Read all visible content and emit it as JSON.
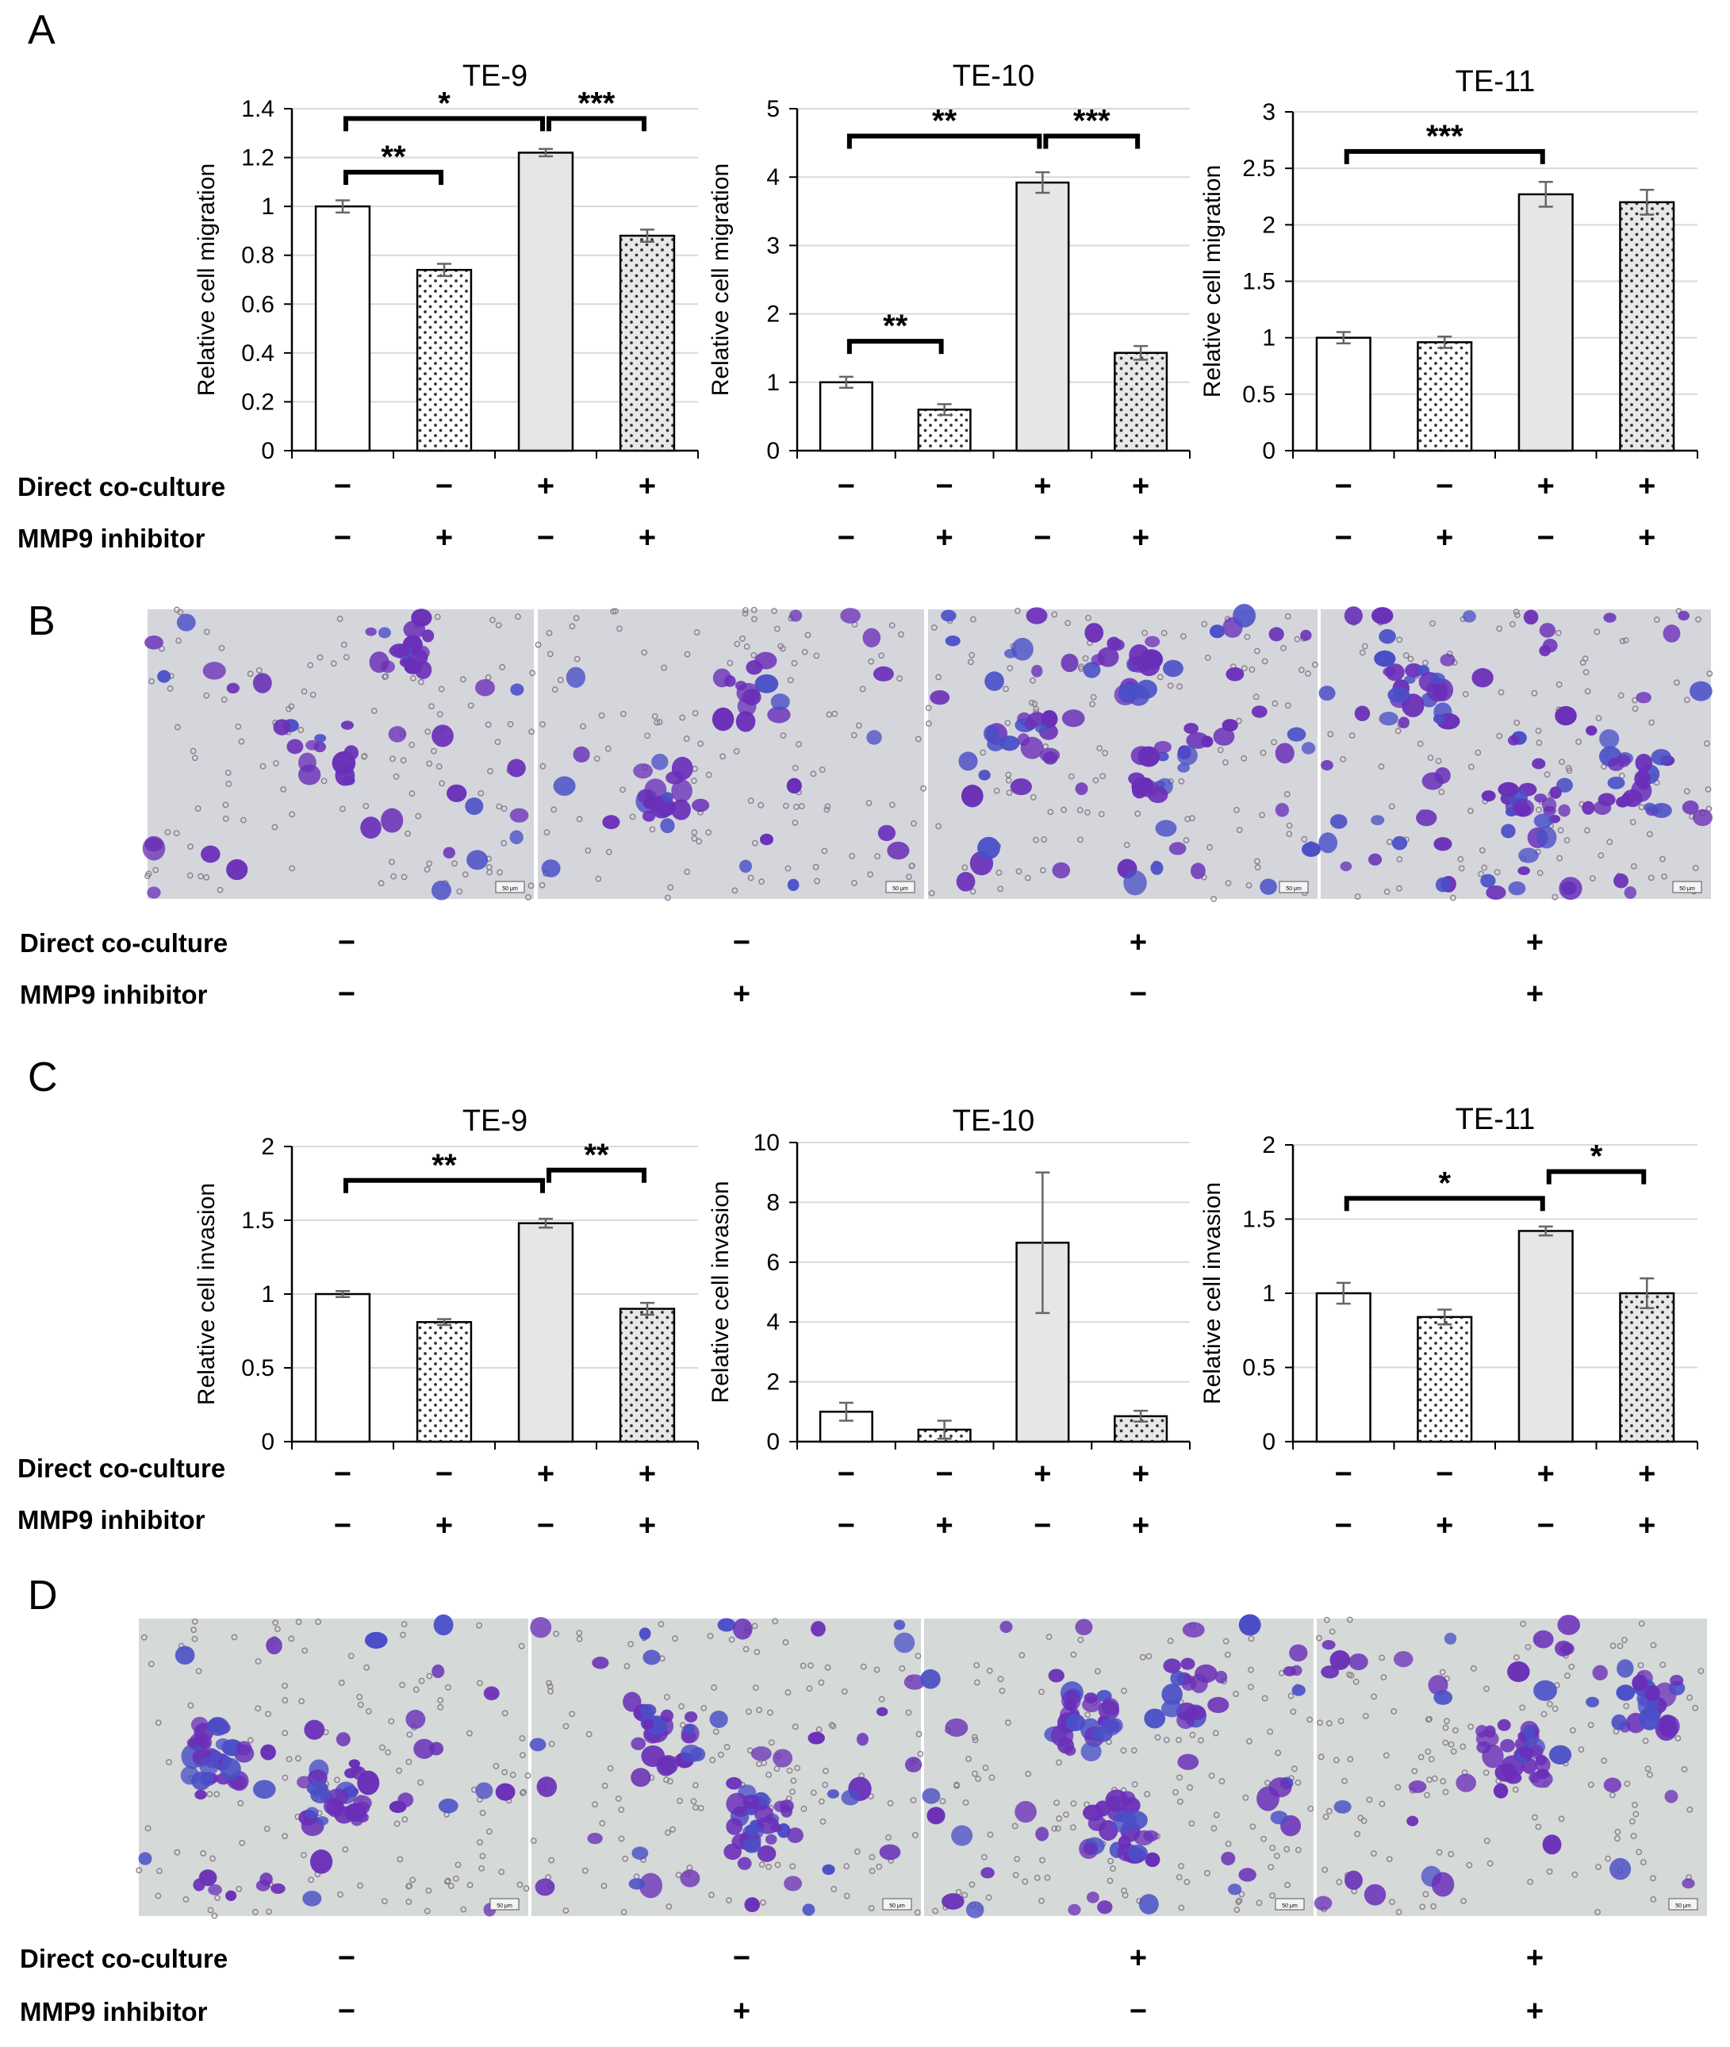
{
  "panels": {
    "A": "A",
    "B": "B",
    "C": "C",
    "D": "D"
  },
  "rows": {
    "co_culture": "Direct co-culture",
    "inhibitor": "MMP9 inhibitor",
    "co_culture_signs": [
      "−",
      "−",
      "+",
      "+"
    ],
    "inhibitor_signs": [
      "−",
      "+",
      "−",
      "+"
    ]
  },
  "scale_bar_label": "50 μm",
  "colors": {
    "bar_white": "#ffffff",
    "bar_dotted_bg": "#ffffff",
    "bar_grey": "#e6e6e6",
    "bar_grey_dotted_bg": "#e8e8e8",
    "grid": "#d9d9d9",
    "micro_bg": "#d4d6dc",
    "micro_bg_d": "#d5d9d7",
    "cell_purple": "#6a2fb8",
    "cell_blue": "#4a4fc7"
  },
  "chart_data": [
    {
      "panel": "A",
      "type": "bar",
      "title": "TE-9",
      "ylabel": "Relative cell migration",
      "ylim": [
        0,
        1.4
      ],
      "yticks": [
        "0",
        "0.2",
        "0.4",
        "0.6",
        "0.8",
        "1",
        "1.2",
        "1.4"
      ],
      "values": [
        1.0,
        0.74,
        1.22,
        0.88
      ],
      "errors": [
        0.025,
        0.025,
        0.015,
        0.025
      ],
      "sig": [
        {
          "from": 0,
          "to": 1,
          "y": 1.14,
          "label": "**"
        },
        {
          "from": 0,
          "to": 2,
          "y": 1.36,
          "label": "*"
        },
        {
          "from": 2,
          "to": 3,
          "y": 1.36,
          "label": "***"
        }
      ]
    },
    {
      "panel": "A",
      "type": "bar",
      "title": "TE-10",
      "ylabel": "Relative cell migration",
      "ylim": [
        0,
        5
      ],
      "yticks": [
        "0",
        "1",
        "2",
        "3",
        "4",
        "5"
      ],
      "values": [
        1.0,
        0.6,
        3.92,
        1.43
      ],
      "errors": [
        0.08,
        0.08,
        0.15,
        0.1
      ],
      "sig": [
        {
          "from": 0,
          "to": 1,
          "y": 1.6,
          "label": "**"
        },
        {
          "from": 0,
          "to": 2,
          "y": 4.6,
          "label": "**"
        },
        {
          "from": 2,
          "to": 3,
          "y": 4.6,
          "label": "***"
        }
      ]
    },
    {
      "panel": "A",
      "type": "bar",
      "title": "TE-11",
      "ylabel": "Relative cell migration",
      "ylim": [
        0,
        3
      ],
      "yticks": [
        "0",
        "0.5",
        "1",
        "1.5",
        "2",
        "2.5",
        "3"
      ],
      "values": [
        1.0,
        0.96,
        2.27,
        2.2
      ],
      "errors": [
        0.05,
        0.05,
        0.11,
        0.11
      ],
      "sig": [
        {
          "from": 0,
          "to": 2,
          "y": 2.65,
          "label": "***"
        }
      ]
    },
    {
      "panel": "C",
      "type": "bar",
      "title": "TE-9",
      "ylabel": "Relative cell invasion",
      "ylim": [
        0,
        2
      ],
      "yticks": [
        "0",
        "0.5",
        "1",
        "1.5",
        "2"
      ],
      "values": [
        1.0,
        0.81,
        1.48,
        0.9
      ],
      "errors": [
        0.02,
        0.02,
        0.03,
        0.04
      ],
      "sig": [
        {
          "from": 0,
          "to": 2,
          "y": 1.77,
          "label": "**"
        },
        {
          "from": 2,
          "to": 3,
          "y": 1.84,
          "label": "**"
        }
      ]
    },
    {
      "panel": "C",
      "type": "bar",
      "title": "TE-10",
      "ylabel": "Relative cell invasion",
      "ylim": [
        0,
        10
      ],
      "yticks": [
        "0",
        "2",
        "4",
        "6",
        "8",
        "10"
      ],
      "values": [
        1.0,
        0.4,
        6.65,
        0.85
      ],
      "errors": [
        0.3,
        0.3,
        2.35,
        0.18
      ],
      "sig": []
    },
    {
      "panel": "C",
      "type": "bar",
      "title": "TE-11",
      "ylabel": "Relative cell invasion",
      "ylim": [
        0,
        2
      ],
      "yticks": [
        "0",
        "0.5",
        "1",
        "1.5",
        "2"
      ],
      "values": [
        1.0,
        0.84,
        1.42,
        1.0
      ],
      "errors": [
        0.07,
        0.05,
        0.03,
        0.1
      ],
      "sig": [
        {
          "from": 0,
          "to": 2,
          "y": 1.64,
          "label": "*"
        },
        {
          "from": 2,
          "to": 3,
          "y": 1.82,
          "label": "*"
        }
      ]
    }
  ]
}
